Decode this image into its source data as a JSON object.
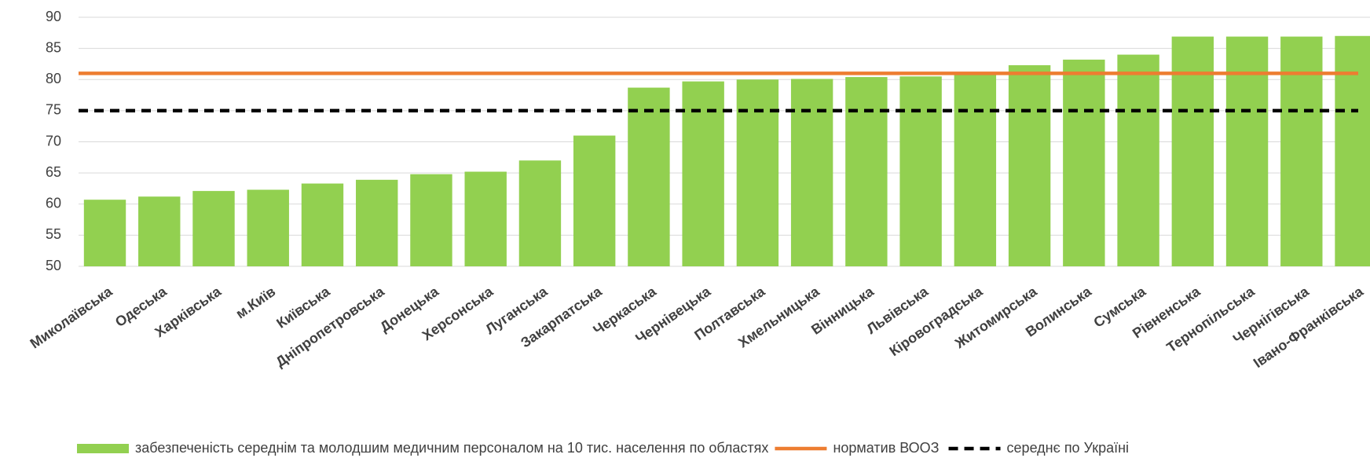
{
  "chart_data": {
    "type": "bar",
    "categories": [
      "Миколаївська",
      "Одеська",
      "Харківська",
      "м.Київ",
      "Київська",
      "Дніпропетровська",
      "Донецька",
      "Херсонська",
      "Луганська",
      "Закарпатська",
      "Черкаська",
      "Чернівецька",
      "Полтавська",
      "Хмельницька",
      "Вінницька",
      "Львівська",
      "Кіровоградська",
      "Житомирська",
      "Волинська",
      "Сумська",
      "Рівненська",
      "Тернопільська",
      "Чернігівська",
      "Івано-Франківська"
    ],
    "series": [
      {
        "name": "забезпеченість середнім та молодшим медичним персоналом на 10 тис. населення по областях",
        "color": "#92d050",
        "values": [
          60.7,
          61.2,
          62.1,
          62.3,
          63.3,
          63.9,
          64.8,
          65.2,
          67.0,
          71.0,
          78.7,
          79.7,
          80.0,
          80.1,
          80.4,
          80.5,
          81.0,
          82.3,
          83.2,
          84.0,
          86.9,
          86.9,
          86.9,
          87.0
        ]
      }
    ],
    "reference_lines": [
      {
        "name": "норматив ВООЗ",
        "color": "#ed7d31",
        "value": 81,
        "dashed": false
      },
      {
        "name": "середнє по  Україні",
        "color": "#000000",
        "value": 75,
        "dashed": true
      }
    ],
    "ylim": [
      50,
      90
    ],
    "yticks": [
      50,
      55,
      60,
      65,
      70,
      75,
      80,
      85,
      90
    ],
    "grid": true,
    "legend": "bottom"
  }
}
